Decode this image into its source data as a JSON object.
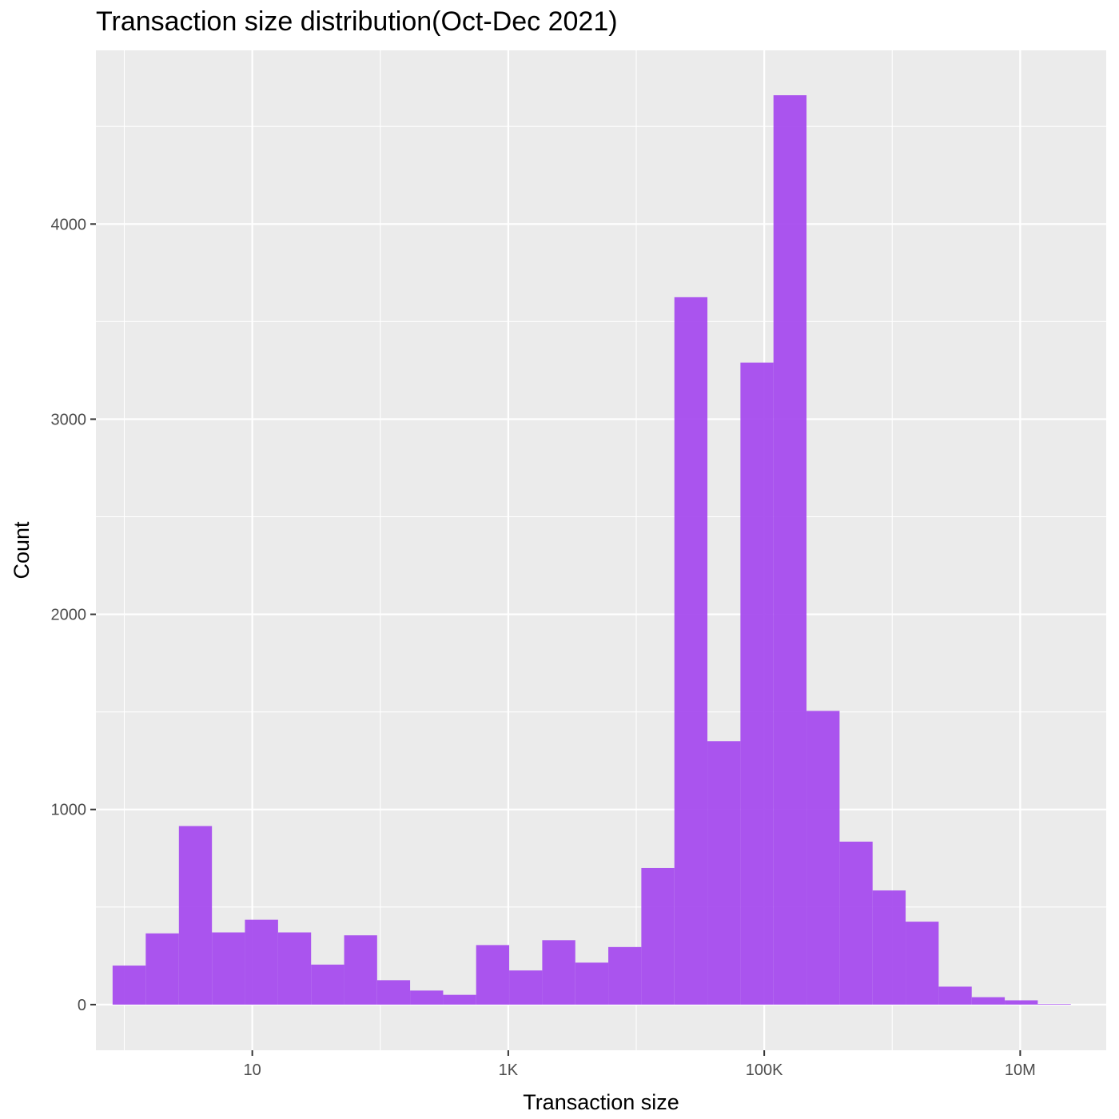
{
  "chart_data": {
    "type": "bar",
    "subtype": "histogram",
    "title": "Transaction size distribution(Oct-Dec 2021)",
    "xlabel": "Transaction size",
    "ylabel": "Count",
    "x_scale": "log10",
    "x_ticks": [
      {
        "value": 10,
        "label": "10"
      },
      {
        "value": 1000,
        "label": "1K"
      },
      {
        "value": 100000,
        "label": "100K"
      },
      {
        "value": 10000000,
        "label": "10M"
      }
    ],
    "y_ticks": [
      0,
      1000,
      2000,
      3000,
      4000
    ],
    "xlim": [
      0.6,
      47000000
    ],
    "ylim": [
      -234,
      4890
    ],
    "grid": true,
    "legend": "none",
    "bar_color": "#a64cee",
    "panel_color": "#ebebeb",
    "bins": [
      {
        "x_start": 0.81,
        "x_end": 1.47,
        "count": 200
      },
      {
        "x_start": 1.47,
        "x_end": 2.67,
        "count": 365
      },
      {
        "x_start": 2.67,
        "x_end": 4.84,
        "count": 915
      },
      {
        "x_start": 4.84,
        "x_end": 8.76,
        "count": 370
      },
      {
        "x_start": 8.76,
        "x_end": 15.9,
        "count": 435
      },
      {
        "x_start": 15.9,
        "x_end": 28.8,
        "count": 370
      },
      {
        "x_start": 28.8,
        "x_end": 52.2,
        "count": 205
      },
      {
        "x_start": 52.2,
        "x_end": 94.5,
        "count": 355
      },
      {
        "x_start": 94.5,
        "x_end": 171,
        "count": 125
      },
      {
        "x_start": 171,
        "x_end": 310,
        "count": 72
      },
      {
        "x_start": 310,
        "x_end": 561,
        "count": 50
      },
      {
        "x_start": 561,
        "x_end": 1017,
        "count": 305
      },
      {
        "x_start": 1017,
        "x_end": 1843,
        "count": 175
      },
      {
        "x_start": 1843,
        "x_end": 3340,
        "count": 330
      },
      {
        "x_start": 3340,
        "x_end": 6050,
        "count": 215
      },
      {
        "x_start": 6050,
        "x_end": 10960,
        "count": 295
      },
      {
        "x_start": 10960,
        "x_end": 19860,
        "count": 700
      },
      {
        "x_start": 19860,
        "x_end": 35980,
        "count": 3625
      },
      {
        "x_start": 35980,
        "x_end": 65190,
        "count": 1350
      },
      {
        "x_start": 65190,
        "x_end": 118100,
        "count": 3290
      },
      {
        "x_start": 118100,
        "x_end": 214000,
        "count": 4660
      },
      {
        "x_start": 214000,
        "x_end": 387800,
        "count": 1505
      },
      {
        "x_start": 387800,
        "x_end": 702700,
        "count": 835
      },
      {
        "x_start": 702700,
        "x_end": 1273000,
        "count": 585
      },
      {
        "x_start": 1273000,
        "x_end": 2307000,
        "count": 425
      },
      {
        "x_start": 2307000,
        "x_end": 4180000,
        "count": 92
      },
      {
        "x_start": 4180000,
        "x_end": 7575000,
        "count": 38
      },
      {
        "x_start": 7575000,
        "x_end": 13720000,
        "count": 22
      },
      {
        "x_start": 13720000,
        "x_end": 24870000,
        "count": 3
      }
    ]
  }
}
